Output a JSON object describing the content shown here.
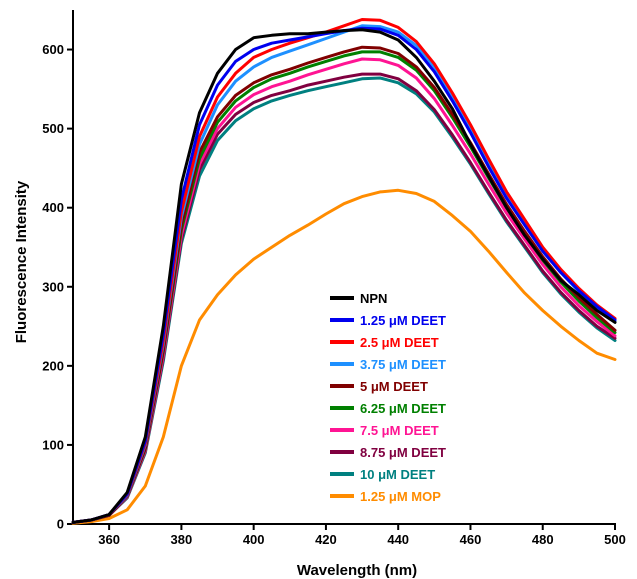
{
  "chart_data": {
    "type": "line",
    "xlabel": "Wavelength (nm)",
    "ylabel": "Fluorescence Intensity",
    "xlim": [
      350,
      500
    ],
    "ylim": [
      0,
      650
    ],
    "x_ticks": [
      360,
      380,
      400,
      420,
      440,
      460,
      480,
      500
    ],
    "y_ticks": [
      0,
      100,
      200,
      300,
      400,
      500,
      600
    ],
    "x_tick_labels": [
      "360",
      "380",
      "400",
      "420",
      "440",
      "460",
      "480",
      "500"
    ],
    "y_tick_labels": [
      "0",
      "100",
      "200",
      "300",
      "400",
      "500",
      "600"
    ],
    "grid": false,
    "legend_position": "center-right",
    "x": [
      350,
      355,
      360,
      365,
      370,
      375,
      380,
      385,
      390,
      395,
      400,
      405,
      410,
      415,
      420,
      425,
      430,
      435,
      440,
      445,
      450,
      455,
      460,
      465,
      470,
      475,
      480,
      485,
      490,
      495,
      500
    ],
    "series": [
      {
        "name": "NPN",
        "color": "#000000",
        "values": [
          2,
          5,
          12,
          40,
          110,
          250,
          430,
          520,
          570,
          600,
          615,
          618,
          620,
          620,
          622,
          624,
          625,
          622,
          612,
          590,
          560,
          525,
          480,
          440,
          400,
          365,
          335,
          308,
          290,
          270,
          255
        ]
      },
      {
        "name": "1.25 μM DEET",
        "color": "#0000ee",
        "values": [
          2,
          5,
          12,
          38,
          105,
          240,
          410,
          505,
          555,
          585,
          600,
          608,
          612,
          616,
          620,
          624,
          627,
          626,
          618,
          600,
          572,
          535,
          495,
          452,
          412,
          378,
          345,
          318,
          295,
          275,
          258
        ]
      },
      {
        "name": "2.5 μM DEET",
        "color": "#ff0000",
        "values": [
          2,
          5,
          12,
          37,
          102,
          232,
          395,
          490,
          540,
          570,
          590,
          600,
          608,
          615,
          622,
          630,
          638,
          637,
          628,
          610,
          582,
          545,
          505,
          462,
          420,
          385,
          350,
          322,
          298,
          277,
          260
        ]
      },
      {
        "name": "3.75 μM DEET",
        "color": "#1e90ff",
        "values": [
          2,
          5,
          12,
          36,
          100,
          228,
          388,
          480,
          530,
          560,
          578,
          590,
          598,
          606,
          614,
          622,
          630,
          629,
          622,
          605,
          578,
          540,
          500,
          458,
          416,
          380,
          346,
          318,
          294,
          274,
          256
        ]
      },
      {
        "name": "5 μM DEET",
        "color": "#800000",
        "values": [
          2,
          5,
          11,
          35,
          96,
          220,
          378,
          470,
          515,
          542,
          558,
          568,
          575,
          583,
          590,
          597,
          603,
          602,
          595,
          578,
          552,
          518,
          482,
          443,
          404,
          370,
          338,
          310,
          286,
          265,
          245
        ]
      },
      {
        "name": "6.25 μM DEET",
        "color": "#008000",
        "values": [
          2,
          5,
          11,
          35,
          95,
          218,
          372,
          462,
          508,
          535,
          552,
          563,
          570,
          578,
          585,
          592,
          597,
          597,
          590,
          574,
          548,
          514,
          477,
          438,
          400,
          366,
          334,
          306,
          282,
          261,
          242
        ]
      },
      {
        "name": "7.5 μM DEET",
        "color": "#ff1493",
        "values": [
          2,
          5,
          11,
          34,
          93,
          213,
          365,
          455,
          500,
          527,
          543,
          553,
          560,
          568,
          575,
          582,
          588,
          587,
          580,
          564,
          538,
          504,
          468,
          430,
          393,
          360,
          328,
          300,
          276,
          256,
          238
        ]
      },
      {
        "name": "8.75 μM DEET",
        "color": "#800040",
        "values": [
          2,
          5,
          11,
          34,
          92,
          210,
          360,
          448,
          493,
          518,
          533,
          542,
          548,
          555,
          560,
          565,
          569,
          569,
          563,
          548,
          524,
          492,
          457,
          420,
          384,
          352,
          320,
          293,
          270,
          250,
          235
        ]
      },
      {
        "name": "10 μM DEET",
        "color": "#008080",
        "values": [
          2,
          5,
          11,
          33,
          90,
          206,
          355,
          440,
          485,
          510,
          525,
          535,
          542,
          548,
          553,
          558,
          563,
          564,
          558,
          544,
          521,
          489,
          455,
          418,
          382,
          350,
          318,
          291,
          268,
          248,
          232
        ]
      },
      {
        "name": "1.25 μM MOP",
        "color": "#ff8c00",
        "values": [
          1,
          3,
          7,
          18,
          48,
          110,
          200,
          258,
          290,
          315,
          335,
          350,
          365,
          378,
          392,
          405,
          414,
          420,
          422,
          418,
          408,
          390,
          370,
          345,
          318,
          292,
          270,
          250,
          232,
          216,
          208
        ]
      }
    ]
  }
}
